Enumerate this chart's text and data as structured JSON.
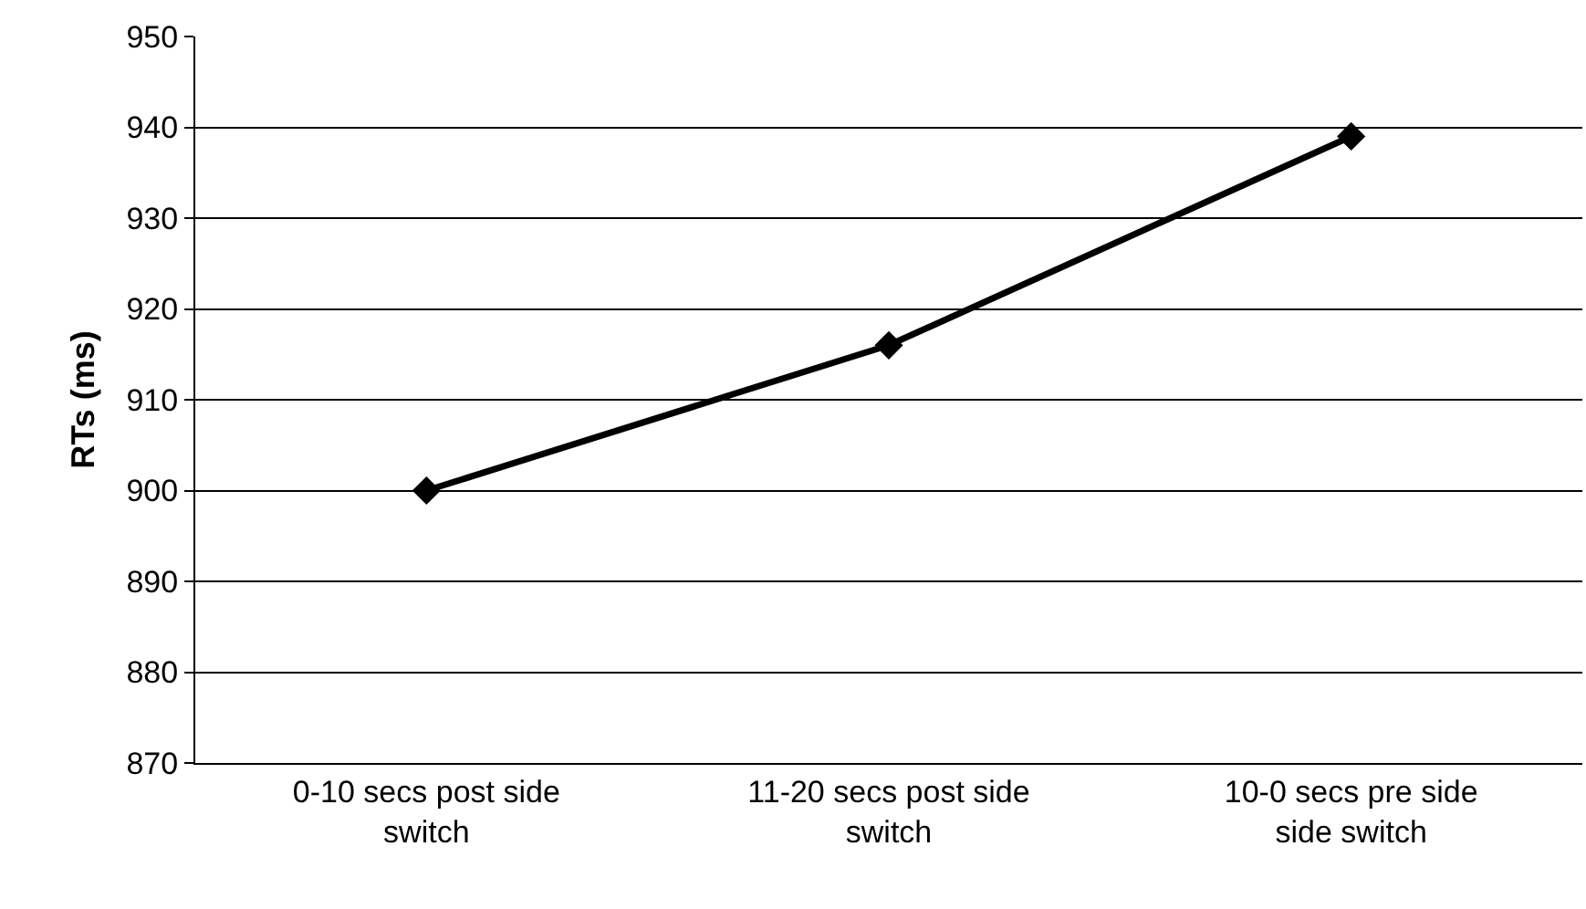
{
  "chart_data": {
    "type": "line",
    "ylabel": "RTs (ms)",
    "categories": [
      "0-10 secs post side switch",
      "11-20 secs post side switch",
      "10-0 secs pre side side switch"
    ],
    "series": [
      {
        "color": "#000000",
        "values": [
          900,
          916,
          939
        ]
      }
    ],
    "ylim": [
      870,
      950
    ],
    "yticks": [
      870,
      880,
      890,
      900,
      910,
      920,
      930,
      940,
      950
    ],
    "grid": "y",
    "marker": "diamond",
    "line_style": "solid",
    "legend": false
  }
}
